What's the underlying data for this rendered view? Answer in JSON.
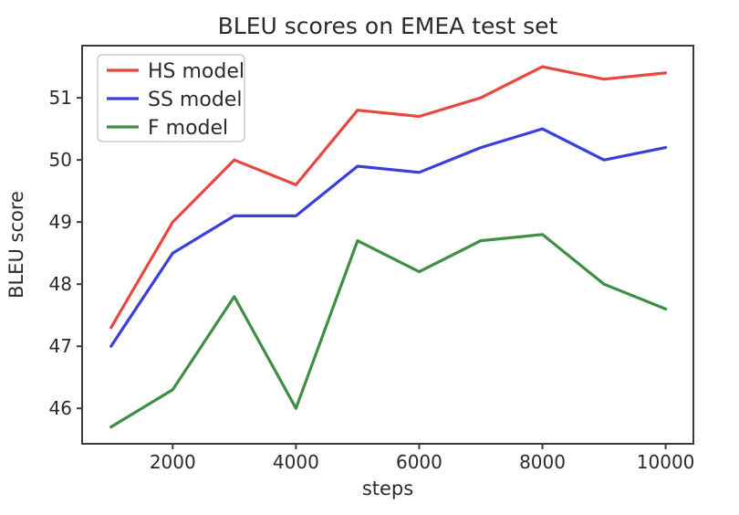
{
  "chart_data": {
    "type": "line",
    "title": "BLEU scores on EMEA test set",
    "xlabel": "steps",
    "ylabel": "BLEU score",
    "x": [
      1000,
      2000,
      3000,
      4000,
      5000,
      6000,
      7000,
      8000,
      9000,
      10000
    ],
    "series": [
      {
        "name": "HS model",
        "color": "#e8473f",
        "values": [
          47.3,
          49.0,
          50.0,
          49.6,
          50.8,
          50.7,
          51.0,
          51.5,
          51.3,
          51.4
        ]
      },
      {
        "name": "SS model",
        "color": "#3a3fdc",
        "values": [
          47.0,
          48.5,
          49.1,
          49.1,
          49.9,
          49.8,
          50.2,
          50.5,
          50.0,
          50.2
        ]
      },
      {
        "name": "F model",
        "color": "#3e8e44",
        "values": [
          45.7,
          46.3,
          47.8,
          46.0,
          48.7,
          48.2,
          48.7,
          48.8,
          48.0,
          47.6
        ]
      }
    ],
    "xticks": [
      2000,
      4000,
      6000,
      8000,
      10000
    ],
    "yticks": [
      46,
      47,
      48,
      49,
      50,
      51
    ],
    "xlim": [
      530,
      10450
    ],
    "ylim": [
      45.43,
      51.84
    ],
    "grid": false,
    "legend_position": "upper left",
    "frame_color": "#3c3c3c"
  }
}
